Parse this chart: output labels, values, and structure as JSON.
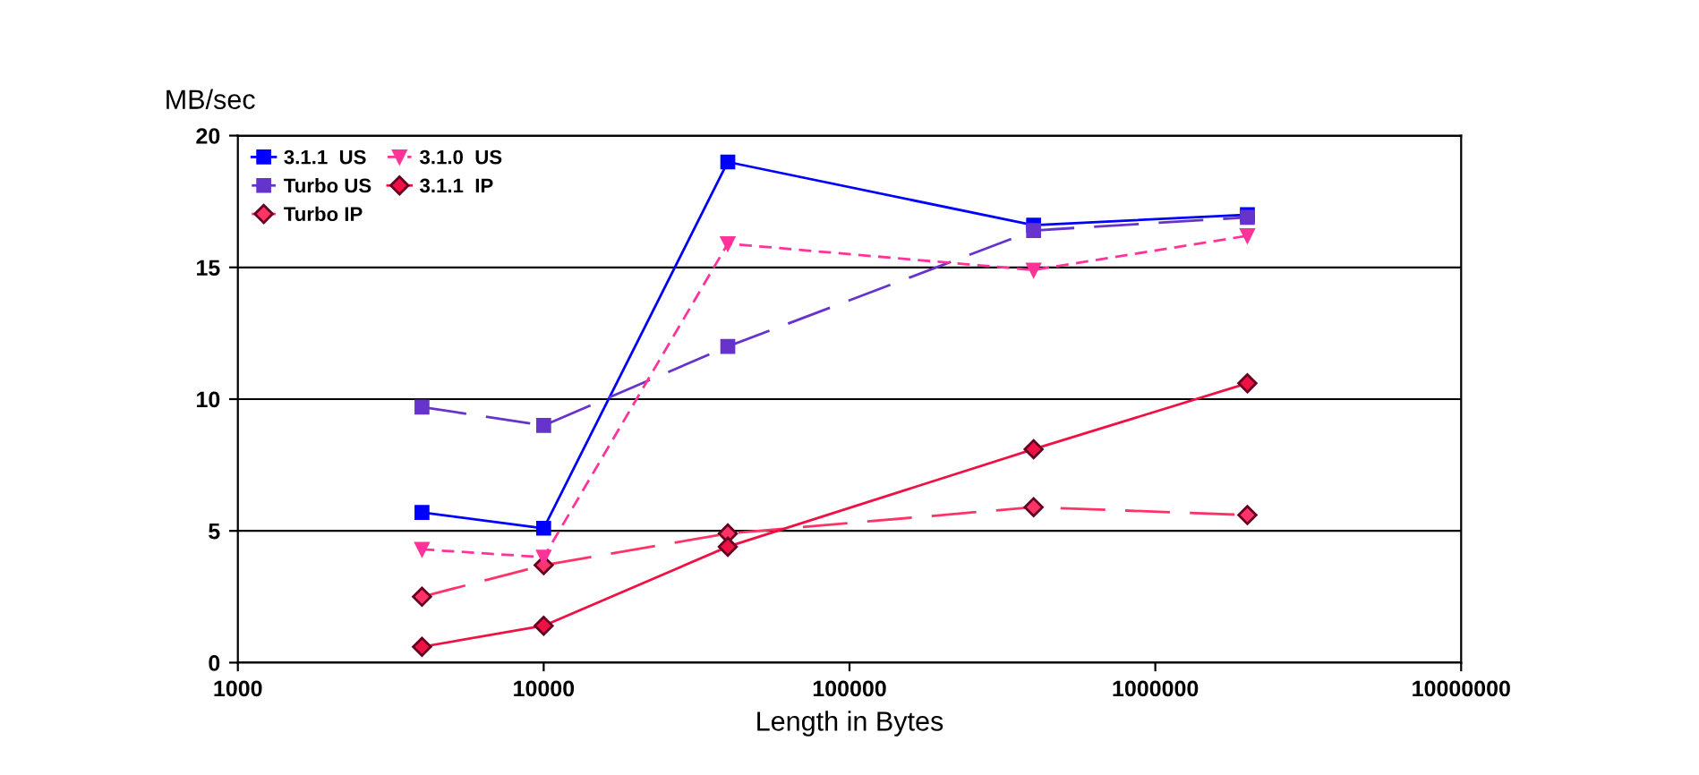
{
  "chart_data": {
    "type": "line",
    "ylabel": "MB/sec",
    "xlabel": "Length in Bytes",
    "log": "x",
    "x": [
      4000,
      10000,
      40000,
      400000,
      2000000
    ],
    "xlim": [
      1000,
      10000000
    ],
    "xticks": [
      1000,
      10000,
      100000,
      1000000,
      10000000
    ],
    "ylim": [
      0,
      20
    ],
    "yticks": [
      0,
      5,
      10,
      15,
      20
    ],
    "grid": "y",
    "legend": "top left",
    "series": [
      {
        "name": "3.1.1  US",
        "color": "#0000ff",
        "values": [
          5.7,
          5.1,
          19.0,
          16.6,
          17.0
        ],
        "marker": "square",
        "line_style": "solid"
      },
      {
        "name": "Turbo US",
        "color": "#6633cc",
        "values": [
          9.7,
          9.0,
          12.0,
          16.4,
          16.9
        ],
        "marker": "square",
        "line_style": "long dash"
      },
      {
        "name": "Turbo IP",
        "color": "#ff3366",
        "values": [
          2.5,
          3.7,
          4.9,
          5.9,
          5.6
        ],
        "marker": "diamond",
        "line_style": "long dash"
      },
      {
        "name": "3.1.0  US",
        "color": "#ff3399",
        "values": [
          4.3,
          4.0,
          15.9,
          14.9,
          16.2
        ],
        "marker": "triangle down",
        "line_style": "dashed"
      },
      {
        "name": "3.1.1  IP",
        "color": "#ee1144",
        "values": [
          0.6,
          1.4,
          4.4,
          8.1,
          10.6
        ],
        "marker": "diamond",
        "line_style": "solid"
      }
    ]
  }
}
